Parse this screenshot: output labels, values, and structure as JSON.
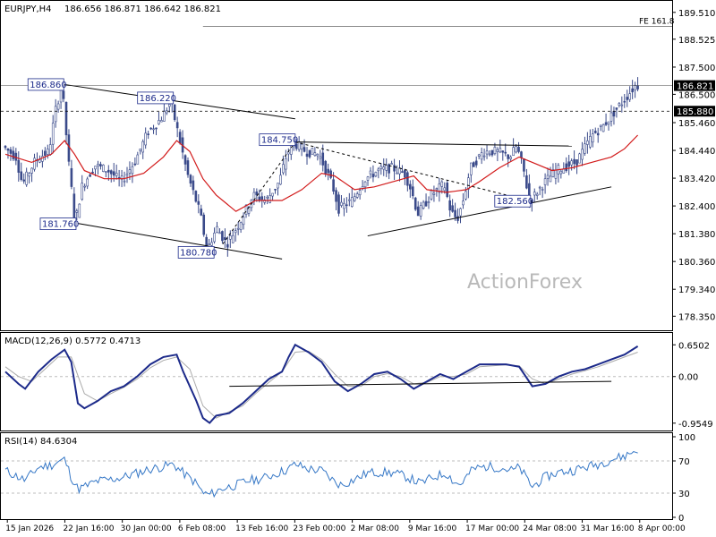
{
  "header": {
    "symbol": "EURJPY,H4",
    "ohlc": "186.656 186.871 186.642 186.821"
  },
  "watermark": "ActionForex",
  "colors": {
    "candle": "#3a4a8a",
    "ma": "#d21a1a",
    "macd_main": "#1c2a8a",
    "macd_signal": "#aaaaaa",
    "rsi": "#3577c6",
    "grid": "#bdbdbd",
    "text": "#000000"
  },
  "chart_data": [
    {
      "type": "candlestick",
      "panel": "price",
      "ylim": [
        177.9,
        189.8
      ],
      "y_ticks": [
        "189.510",
        "188.525",
        "187.500",
        "186.500",
        "185.460",
        "184.440",
        "183.420",
        "182.400",
        "181.380",
        "180.360",
        "179.340",
        "178.350"
      ],
      "x_ticks": [
        "15 Jan 2026",
        "22 Jan 16:00",
        "30 Jan 00:00",
        "6 Feb 08:00",
        "13 Feb 16:00",
        "23 Feb 00:00",
        "2 Mar 08:00",
        "9 Mar 16:00",
        "17 Mar 00:00",
        "24 Mar 08:00",
        "31 Mar 16:00",
        "8 Apr 00:00"
      ],
      "x_range": [
        0,
        100
      ],
      "price_path": [
        [
          0,
          184.6
        ],
        [
          2,
          184.2
        ],
        [
          3,
          183.2
        ],
        [
          5,
          184.1
        ],
        [
          7,
          184.4
        ],
        [
          8,
          185.9
        ],
        [
          9,
          186.86
        ],
        [
          10,
          184.0
        ],
        [
          11,
          181.76
        ],
        [
          12,
          183.1
        ],
        [
          14,
          183.9
        ],
        [
          16,
          183.7
        ],
        [
          18,
          183.3
        ],
        [
          20,
          184.0
        ],
        [
          22,
          185.1
        ],
        [
          24,
          185.6
        ],
        [
          25.5,
          186.22
        ],
        [
          26.5,
          185.2
        ],
        [
          28,
          183.6
        ],
        [
          30,
          182.1
        ],
        [
          31,
          180.78
        ],
        [
          32.5,
          181.6
        ],
        [
          34,
          181.0
        ],
        [
          36,
          181.8
        ],
        [
          38,
          182.8
        ],
        [
          40,
          182.6
        ],
        [
          42,
          183.3
        ],
        [
          43,
          184.2
        ],
        [
          44,
          184.75
        ],
        [
          46,
          184.4
        ],
        [
          48,
          184.3
        ],
        [
          50,
          183.2
        ],
        [
          51,
          182.3
        ],
        [
          53,
          182.6
        ],
        [
          55,
          183.4
        ],
        [
          57,
          183.7
        ],
        [
          59,
          183.8
        ],
        [
          61,
          183.6
        ],
        [
          62,
          183.0
        ],
        [
          63,
          182.1
        ],
        [
          65,
          182.8
        ],
        [
          67,
          183.2
        ],
        [
          68,
          182.2
        ],
        [
          69,
          181.9
        ],
        [
          70,
          182.7
        ],
        [
          71,
          183.8
        ],
        [
          73,
          184.4
        ],
        [
          75,
          184.4
        ],
        [
          77,
          184.2
        ],
        [
          78,
          184.6
        ],
        [
          79,
          183.8
        ],
        [
          80,
          182.56
        ],
        [
          82,
          183.2
        ],
        [
          84,
          183.7
        ],
        [
          86,
          183.9
        ],
        [
          87,
          184.0
        ],
        [
          88.5,
          184.6
        ],
        [
          89.5,
          185.0
        ],
        [
          91,
          185.3
        ],
        [
          93,
          185.9
        ],
        [
          94,
          186.2
        ],
        [
          95,
          186.5
        ],
        [
          96,
          186.821
        ]
      ],
      "ma_path": [
        [
          0,
          184.3
        ],
        [
          4,
          184.0
        ],
        [
          7,
          184.3
        ],
        [
          9,
          184.8
        ],
        [
          10.5,
          184.3
        ],
        [
          12,
          183.7
        ],
        [
          15,
          183.4
        ],
        [
          18,
          183.4
        ],
        [
          21,
          183.6
        ],
        [
          24,
          184.2
        ],
        [
          26,
          184.8
        ],
        [
          28,
          184.4
        ],
        [
          30,
          183.4
        ],
        [
          32,
          182.8
        ],
        [
          35,
          182.2
        ],
        [
          38,
          182.6
        ],
        [
          42,
          182.6
        ],
        [
          45,
          183.0
        ],
        [
          48,
          183.6
        ],
        [
          50,
          183.5
        ],
        [
          53,
          183.0
        ],
        [
          56,
          183.1
        ],
        [
          59,
          183.3
        ],
        [
          62,
          183.5
        ],
        [
          64,
          183.0
        ],
        [
          67,
          182.9
        ],
        [
          70,
          183.0
        ],
        [
          72,
          183.3
        ],
        [
          75,
          183.8
        ],
        [
          78,
          184.2
        ],
        [
          80,
          184.0
        ],
        [
          83,
          183.7
        ],
        [
          86,
          183.8
        ],
        [
          89,
          184.0
        ],
        [
          92,
          184.2
        ],
        [
          94,
          184.5
        ],
        [
          96,
          185.0
        ]
      ],
      "labels": [
        {
          "text": "186.860",
          "x": 9,
          "y": 186.86
        },
        {
          "text": "186.220",
          "x": 25.5,
          "y": 186.22
        },
        {
          "text": "181.760",
          "x": 11,
          "y": 181.76
        },
        {
          "text": "180.780",
          "x": 31,
          "y": 180.78
        },
        {
          "text": "184.750",
          "x": 44,
          "y": 184.75
        },
        {
          "text": "182.560",
          "x": 80,
          "y": 182.56
        }
      ],
      "annotations": [
        {
          "text": "FE 161.8",
          "y": 189.0
        }
      ],
      "trendlines": [
        {
          "from": [
            9,
            186.86
          ],
          "to": [
            44,
            185.6
          ],
          "style": "solid"
        },
        {
          "from": [
            11,
            181.76
          ],
          "to": [
            42,
            180.45
          ],
          "style": "solid"
        },
        {
          "from": [
            44,
            184.75
          ],
          "to": [
            86,
            184.6
          ],
          "style": "solid"
        },
        {
          "from": [
            55,
            181.3
          ],
          "to": [
            92,
            183.1
          ],
          "style": "solid"
        },
        {
          "from": [
            33,
            181.0
          ],
          "to": [
            44,
            184.75
          ],
          "style": "dashed"
        },
        {
          "from": [
            44,
            184.75
          ],
          "to": [
            80,
            182.56
          ],
          "style": "dashed"
        }
      ],
      "hlines": [
        {
          "y": 186.821,
          "style": "solid",
          "label": "186.821"
        },
        {
          "y": 185.88,
          "style": "dashed",
          "label": "185.880"
        },
        {
          "y": 189.0,
          "style": "solid",
          "x_from": 30
        }
      ]
    },
    {
      "type": "line",
      "panel": "macd",
      "title": "MACD(12,26,9) 0.5772 0.4713",
      "ylim": [
        -1.05,
        0.82
      ],
      "y_ticks": [
        "0.6502",
        "0.00",
        "-0.9549"
      ],
      "series": [
        {
          "values_path": [
            [
              0,
              0.1
            ],
            [
              2,
              -0.15
            ],
            [
              3,
              -0.25
            ],
            [
              5,
              0.1
            ],
            [
              7,
              0.35
            ],
            [
              9,
              0.55
            ],
            [
              10,
              0.3
            ],
            [
              11,
              -0.55
            ],
            [
              12,
              -0.65
            ],
            [
              14,
              -0.5
            ],
            [
              16,
              -0.3
            ],
            [
              18,
              -0.2
            ],
            [
              20,
              0.0
            ],
            [
              22,
              0.25
            ],
            [
              24,
              0.4
            ],
            [
              26,
              0.45
            ],
            [
              27,
              0.1
            ],
            [
              29,
              -0.5
            ],
            [
              30,
              -0.85
            ],
            [
              31,
              -0.95
            ],
            [
              32,
              -0.8
            ],
            [
              34,
              -0.75
            ],
            [
              36,
              -0.55
            ],
            [
              38,
              -0.3
            ],
            [
              40,
              -0.05
            ],
            [
              42,
              0.1
            ],
            [
              43,
              0.4
            ],
            [
              44,
              0.65
            ],
            [
              46,
              0.5
            ],
            [
              48,
              0.3
            ],
            [
              50,
              -0.1
            ],
            [
              52,
              -0.3
            ],
            [
              54,
              -0.15
            ],
            [
              56,
              0.05
            ],
            [
              58,
              0.1
            ],
            [
              60,
              -0.05
            ],
            [
              62,
              -0.25
            ],
            [
              64,
              -0.1
            ],
            [
              66,
              0.05
            ],
            [
              68,
              -0.05
            ],
            [
              70,
              0.1
            ],
            [
              72,
              0.25
            ],
            [
              74,
              0.25
            ],
            [
              76,
              0.25
            ],
            [
              78,
              0.2
            ],
            [
              80,
              -0.2
            ],
            [
              82,
              -0.15
            ],
            [
              84,
              0.0
            ],
            [
              86,
              0.1
            ],
            [
              88,
              0.15
            ],
            [
              90,
              0.25
            ],
            [
              92,
              0.35
            ],
            [
              94,
              0.45
            ],
            [
              96,
              0.62
            ]
          ]
        },
        {
          "values_path": [
            [
              0,
              0.2
            ],
            [
              2,
              0.0
            ],
            [
              4,
              -0.1
            ],
            [
              6,
              0.15
            ],
            [
              8,
              0.4
            ],
            [
              10,
              0.4
            ],
            [
              12,
              -0.35
            ],
            [
              14,
              -0.5
            ],
            [
              16,
              -0.35
            ],
            [
              18,
              -0.22
            ],
            [
              20,
              -0.05
            ],
            [
              22,
              0.18
            ],
            [
              24,
              0.33
            ],
            [
              26,
              0.4
            ],
            [
              28,
              0.15
            ],
            [
              30,
              -0.6
            ],
            [
              32,
              -0.85
            ],
            [
              34,
              -0.72
            ],
            [
              36,
              -0.6
            ],
            [
              38,
              -0.35
            ],
            [
              40,
              -0.12
            ],
            [
              42,
              0.1
            ],
            [
              44,
              0.5
            ],
            [
              46,
              0.52
            ],
            [
              48,
              0.35
            ],
            [
              50,
              0.05
            ],
            [
              52,
              -0.2
            ],
            [
              54,
              -0.2
            ],
            [
              56,
              0.0
            ],
            [
              58,
              0.06
            ],
            [
              60,
              0.0
            ],
            [
              62,
              -0.15
            ],
            [
              64,
              -0.12
            ],
            [
              66,
              0.0
            ],
            [
              68,
              0.0
            ],
            [
              70,
              0.05
            ],
            [
              72,
              0.2
            ],
            [
              74,
              0.22
            ],
            [
              76,
              0.24
            ],
            [
              78,
              0.22
            ],
            [
              80,
              -0.05
            ],
            [
              82,
              -0.15
            ],
            [
              84,
              -0.05
            ],
            [
              86,
              0.05
            ],
            [
              88,
              0.12
            ],
            [
              90,
              0.2
            ],
            [
              92,
              0.3
            ],
            [
              94,
              0.4
            ],
            [
              96,
              0.5
            ]
          ]
        }
      ],
      "trendline": {
        "from": [
          34,
          -0.2
        ],
        "to": [
          92,
          -0.1
        ]
      }
    },
    {
      "type": "line",
      "panel": "rsi",
      "title": "RSI(14) 84.6304",
      "ylim": [
        0,
        100
      ],
      "y_ticks": [
        "100",
        "70",
        "30",
        "0"
      ],
      "series": [
        {
          "values_path": [
            [
              0,
              58
            ],
            [
              2,
              50
            ],
            [
              3,
              46
            ],
            [
              5,
              62
            ],
            [
              7,
              65
            ],
            [
              9,
              72
            ],
            [
              10,
              50
            ],
            [
              11,
              35
            ],
            [
              12,
              38
            ],
            [
              14,
              45
            ],
            [
              16,
              47
            ],
            [
              18,
              50
            ],
            [
              20,
              55
            ],
            [
              22,
              60
            ],
            [
              24,
              63
            ],
            [
              25.5,
              66
            ],
            [
              27,
              55
            ],
            [
              29,
              42
            ],
            [
              30,
              30
            ],
            [
              31,
              28
            ],
            [
              33,
              36
            ],
            [
              35,
              40
            ],
            [
              37,
              46
            ],
            [
              39,
              48
            ],
            [
              41,
              54
            ],
            [
              43,
              60
            ],
            [
              44,
              66
            ],
            [
              46,
              60
            ],
            [
              48,
              58
            ],
            [
              50,
              44
            ],
            [
              51,
              40
            ],
            [
              53,
              47
            ],
            [
              55,
              55
            ],
            [
              57,
              56
            ],
            [
              59,
              55
            ],
            [
              61,
              50
            ],
            [
              63,
              42
            ],
            [
              65,
              50
            ],
            [
              67,
              55
            ],
            [
              68,
              45
            ],
            [
              69,
              40
            ],
            [
              70,
              50
            ],
            [
              71,
              60
            ],
            [
              73,
              63
            ],
            [
              75,
              62
            ],
            [
              77,
              58
            ],
            [
              78,
              62
            ],
            [
              79,
              50
            ],
            [
              80,
              38
            ],
            [
              82,
              50
            ],
            [
              84,
              56
            ],
            [
              86,
              58
            ],
            [
              88,
              62
            ],
            [
              90,
              66
            ],
            [
              92,
              72
            ],
            [
              94,
              76
            ],
            [
              96,
              84.6
            ]
          ]
        }
      ]
    }
  ]
}
